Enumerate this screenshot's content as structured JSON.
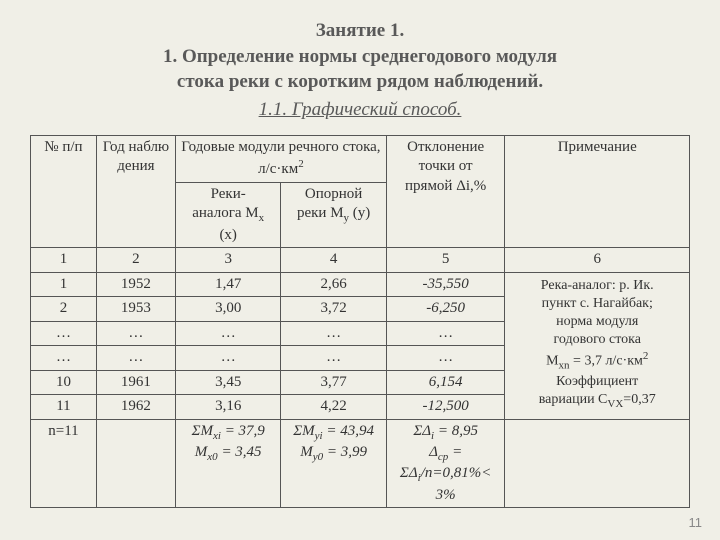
{
  "heading": {
    "line1": "Занятие 1.",
    "line2": "1. Определение нормы среднегодового модуля",
    "line3": "стока реки с коротким рядом наблюдений.",
    "subtitle": "1.1. Графический способ."
  },
  "table": {
    "header": {
      "c1": "№ п/п",
      "c2": "Год наблю дения",
      "c34_top": "Годовые модули речного стока, л/с·км",
      "c34_sup": "2",
      "c3_sub_a": "Реки-",
      "c3_sub_b": "аналога М",
      "c3_sub_c": "х",
      "c3_sub_d": " (х)",
      "c4_sub_a": "Опорной",
      "c4_sub_b": "реки М",
      "c4_sub_c": "у",
      "c4_sub_d": " (у)",
      "c5_a": "Отклонение",
      "c5_b": "точки от",
      "c5_c": "прямой Δi,%",
      "c6": "Примечание"
    },
    "colnums": {
      "c1": "1",
      "c2": "2",
      "c3": "3",
      "c4": "4",
      "c5": "5",
      "c6": "6"
    },
    "rows": [
      {
        "n": "1",
        "year": "1952",
        "mx": "1,47",
        "my": "2,66",
        "dev": "-35,550"
      },
      {
        "n": "2",
        "year": "1953",
        "mx": "3,00",
        "my": "3,72",
        "dev": "-6,250"
      },
      {
        "n": "…",
        "year": "…",
        "mx": "…",
        "my": "…",
        "dev": "…"
      },
      {
        "n": "…",
        "year": "…",
        "mx": "…",
        "my": "…",
        "dev": "…"
      },
      {
        "n": "10",
        "year": "1961",
        "mx": "3,45",
        "my": "3,77",
        "dev": "6,154"
      },
      {
        "n": "11",
        "year": "1962",
        "mx": "3,16",
        "my": "4,22",
        "dev": "-12,500"
      }
    ],
    "note": {
      "l1": "Река-аналог: р. Ик.",
      "l2": "пункт с. Нагайбак;",
      "l3": "норма модуля",
      "l4": "годового стока",
      "l5a": "М",
      "l5b": "xn",
      "l5c": " = 3,7 л/с·км",
      "l5d": "2",
      "l6a": "Коэффициент",
      "l7a": "вариации C",
      "l7b": "VX",
      "l7c": "=0,37"
    },
    "summary": {
      "n": "n=11",
      "mx_sum_a": "ΣМ",
      "mx_sum_b": "xi",
      "mx_sum_c": " = 37,9",
      "mx0_a": "М",
      "mx0_b": "х0",
      "mx0_c": " = 3,45",
      "my_sum_a": "ΣМ",
      "my_sum_b": "уi",
      "my_sum_c": " = 43,94",
      "my0_a": "М",
      "my0_b": "у0",
      "my0_c": " = 3,99",
      "dev1_a": "ΣΔ",
      "dev1_b": "i",
      "dev1_c": " = 8,95",
      "dev2_a": "Δ",
      "dev2_b": "ср",
      "dev2_c": " =",
      "dev3_a": "ΣΔ",
      "dev3_b": "i",
      "dev3_c": "/n=0,81%< 3%"
    }
  },
  "pagenum": "11",
  "colors": {
    "background": "#f0efe7",
    "heading_text": "#595959",
    "table_border": "#555555",
    "text": "#333333",
    "pagenum": "#888888"
  }
}
